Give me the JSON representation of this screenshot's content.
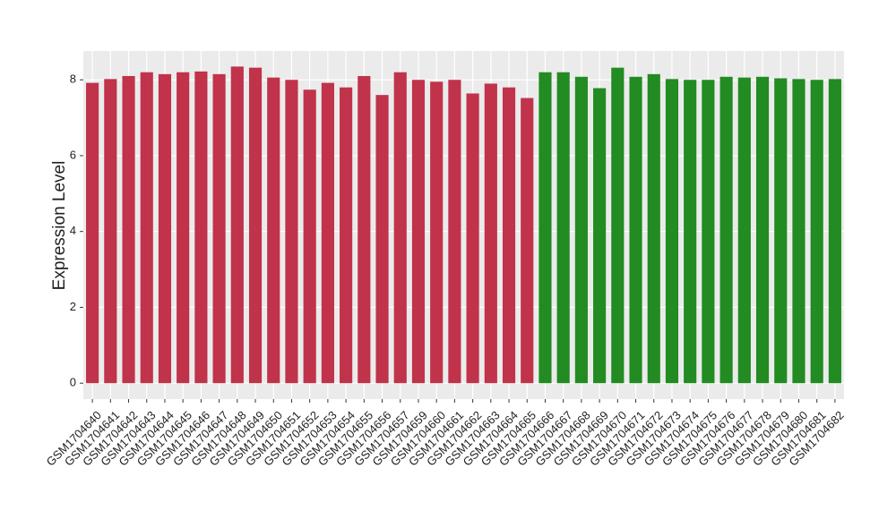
{
  "chart_data": {
    "type": "bar",
    "y_label": "Expression Level",
    "categories": [
      "GSM1704640",
      "GSM1704641",
      "GSM1704642",
      "GSM1704643",
      "GSM1704644",
      "GSM1704645",
      "GSM1704646",
      "GSM1704647",
      "GSM1704648",
      "GSM1704649",
      "GSM1704650",
      "GSM1704651",
      "GSM1704652",
      "GSM1704653",
      "GSM1704654",
      "GSM1704655",
      "GSM1704656",
      "GSM1704657",
      "GSM1704659",
      "GSM1704660",
      "GSM1704661",
      "GSM1704662",
      "GSM1704663",
      "GSM1704664",
      "GSM1704665",
      "GSM1704666",
      "GSM1704667",
      "GSM1704668",
      "GSM1704669",
      "GSM1704670",
      "GSM1704671",
      "GSM1704672",
      "GSM1704673",
      "GSM1704674",
      "GSM1704675",
      "GSM1704676",
      "GSM1704677",
      "GSM1704678",
      "GSM1704679",
      "GSM1704680",
      "GSM1704681",
      "GSM1704682"
    ],
    "values": [
      7.92,
      8.02,
      8.1,
      8.2,
      8.15,
      8.2,
      8.22,
      8.15,
      8.35,
      8.32,
      8.06,
      8.0,
      7.74,
      7.92,
      7.8,
      8.1,
      7.6,
      8.2,
      8.0,
      7.95,
      8.0,
      7.64,
      7.9,
      7.8,
      7.52,
      8.2,
      8.2,
      8.08,
      7.78,
      8.32,
      8.08,
      8.15,
      8.02,
      8.0,
      8.0,
      8.08,
      8.06,
      8.08,
      8.04,
      8.02,
      8.0,
      8.02
    ],
    "colors": [
      "#c0334a",
      "#c0334a",
      "#c0334a",
      "#c0334a",
      "#c0334a",
      "#c0334a",
      "#c0334a",
      "#c0334a",
      "#c0334a",
      "#c0334a",
      "#c0334a",
      "#c0334a",
      "#c0334a",
      "#c0334a",
      "#c0334a",
      "#c0334a",
      "#c0334a",
      "#c0334a",
      "#c0334a",
      "#c0334a",
      "#c0334a",
      "#c0334a",
      "#c0334a",
      "#c0334a",
      "#c0334a",
      "#228b22",
      "#228b22",
      "#228b22",
      "#228b22",
      "#228b22",
      "#228b22",
      "#228b22",
      "#228b22",
      "#228b22",
      "#228b22",
      "#228b22",
      "#228b22",
      "#228b22",
      "#228b22",
      "#228b22",
      "#228b22",
      "#228b22"
    ],
    "ylim": [
      -0.42,
      8.76
    ],
    "yticks": [
      0,
      2,
      4,
      6,
      8
    ],
    "grid": true
  }
}
